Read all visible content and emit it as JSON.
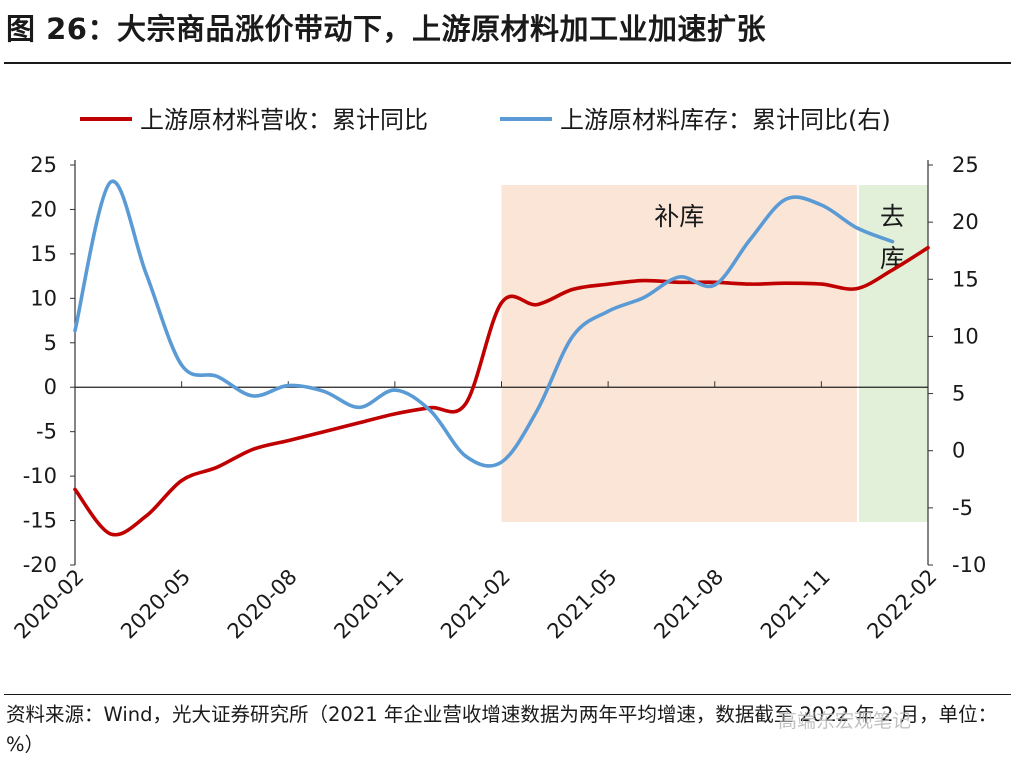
{
  "figure": {
    "title": "图 26：大宗商品涨价带动下，上游原材料加工业加速扩张",
    "source": "资料来源：Wind，光大证券研究所（2021 年企业营收增速数据为两年平均增速，数据截至 2022 年 2 月，单位：%）",
    "watermark": "高端东宏观笔记"
  },
  "chart_data": {
    "type": "line",
    "title": "",
    "legend_position": "top",
    "grid": false,
    "x_tick_labels": [
      "2020-02",
      "2020-05",
      "2020-08",
      "2020-11",
      "2021-02",
      "2021-05",
      "2021-08",
      "2021-11",
      "2022-02"
    ],
    "x_range": [
      "2020-02",
      "2022-02"
    ],
    "y_left": {
      "ylim": [
        -20,
        25
      ],
      "ticks": [
        25,
        20,
        15,
        10,
        5,
        0,
        -5,
        -10,
        -15,
        -20
      ]
    },
    "y_right": {
      "ylim": [
        -10,
        25
      ],
      "ticks": [
        25,
        20,
        15,
        10,
        5,
        0,
        -5,
        -10
      ]
    },
    "series": [
      {
        "name": "上游原材料营收：累计同比",
        "axis": "left",
        "color": "#c00000",
        "x": [
          "2020-02",
          "2020-03",
          "2020-04",
          "2020-05",
          "2020-06",
          "2020-07",
          "2020-08",
          "2020-09",
          "2020-10",
          "2020-11",
          "2020-12",
          "2021-01",
          "2021-02",
          "2021-03",
          "2021-04",
          "2021-05",
          "2021-06",
          "2021-07",
          "2021-08",
          "2021-09",
          "2021-10",
          "2021-11",
          "2021-12",
          "2022-01",
          "2022-02"
        ],
        "values": [
          -11.5,
          -16.5,
          -14.5,
          -10.5,
          -9,
          -7,
          -6,
          -5,
          -4,
          -3,
          -2.3,
          -1.8,
          9.5,
          9.3,
          11,
          11.6,
          12,
          11.8,
          11.8,
          11.6,
          11.7,
          11.6,
          11.1,
          13.2,
          15.7
        ]
      },
      {
        "name": "上游原材料库存：累计同比(右)",
        "axis": "right",
        "color": "#5b9bd5",
        "x": [
          "2020-02",
          "2020-03",
          "2020-04",
          "2020-05",
          "2020-06",
          "2020-07",
          "2020-08",
          "2020-09",
          "2020-10",
          "2020-11",
          "2020-12",
          "2021-01",
          "2021-02",
          "2021-03",
          "2021-04",
          "2021-05",
          "2021-06",
          "2021-07",
          "2021-08",
          "2021-09",
          "2021-10",
          "2021-11",
          "2021-12",
          "2022-01",
          "2022-02"
        ],
        "values": [
          10.5,
          23.5,
          15.5,
          7.5,
          6.5,
          4.8,
          5.7,
          5.2,
          3.8,
          5.3,
          3.5,
          -0.5,
          -1,
          3.5,
          10,
          12.2,
          13.4,
          15.2,
          14.5,
          18.5,
          22,
          21.5,
          19.5,
          18.3,
          null
        ]
      }
    ],
    "shaded_regions": [
      {
        "label": "补库",
        "from": "2021-02",
        "to": "2021-12",
        "color": "#fbe5d6"
      },
      {
        "label": "去库",
        "from": "2021-12",
        "to": "2022-02",
        "color": "#e2f0d9"
      }
    ]
  }
}
